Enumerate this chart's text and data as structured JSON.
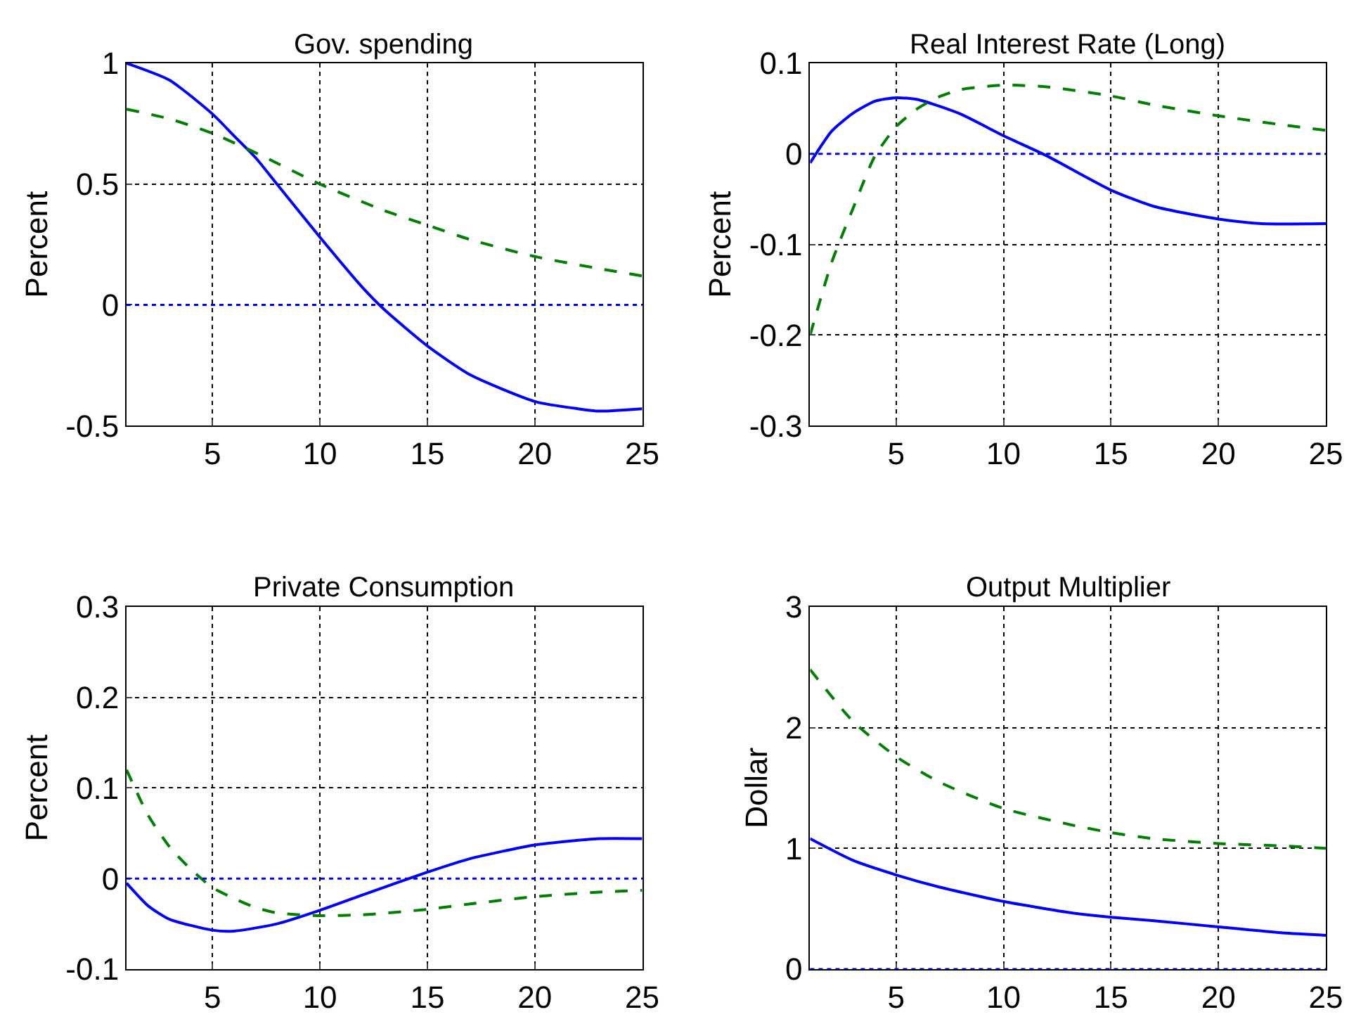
{
  "chart_data": [
    {
      "type": "line",
      "title": "Gov. spending",
      "ylabel": "Percent",
      "xlim": [
        1,
        25
      ],
      "xticks": [
        5,
        10,
        15,
        20,
        25
      ],
      "ylim": [
        -0.5,
        1
      ],
      "yticks": [
        -0.5,
        0,
        0.5,
        1
      ],
      "grid": true,
      "ref_lines": [
        {
          "axis": "y",
          "value": 0,
          "color": "#0000ff",
          "line_style": "dotted"
        }
      ],
      "series": [
        {
          "color": "#0000ff",
          "line_style": "solid",
          "x": [
            1,
            3,
            5,
            6,
            7,
            8,
            10,
            12,
            13,
            15,
            17,
            20,
            22,
            23,
            25
          ],
          "values": [
            1.0,
            0.93,
            0.79,
            0.7,
            0.61,
            0.5,
            0.28,
            0.07,
            -0.02,
            -0.17,
            -0.29,
            -0.4,
            -0.43,
            -0.44,
            -0.43
          ]
        },
        {
          "color": "#008000",
          "line_style": "dashed",
          "x": [
            1,
            3,
            5,
            7,
            10,
            13,
            15,
            17,
            20,
            23,
            25
          ],
          "values": [
            0.81,
            0.77,
            0.71,
            0.63,
            0.5,
            0.39,
            0.33,
            0.27,
            0.2,
            0.15,
            0.12
          ]
        }
      ]
    },
    {
      "type": "line",
      "title": "Real Interest Rate (Long)",
      "ylabel": "Percent",
      "xlim": [
        1,
        25
      ],
      "xticks": [
        5,
        10,
        15,
        20,
        25
      ],
      "ylim": [
        -0.3,
        0.1
      ],
      "yticks": [
        -0.3,
        -0.2,
        -0.1,
        0,
        0.1
      ],
      "grid": true,
      "ref_lines": [
        {
          "axis": "y",
          "value": 0,
          "color": "#0000ff",
          "line_style": "dotted"
        }
      ],
      "series": [
        {
          "color": "#0000ff",
          "line_style": "solid",
          "x": [
            1,
            2,
            3,
            4,
            5,
            6,
            8,
            10,
            12,
            15,
            17,
            20,
            22,
            25
          ],
          "values": [
            -0.01,
            0.025,
            0.045,
            0.058,
            0.062,
            0.06,
            0.044,
            0.02,
            -0.002,
            -0.04,
            -0.058,
            -0.072,
            -0.077,
            -0.077
          ]
        },
        {
          "color": "#008000",
          "line_style": "dashed",
          "x": [
            1,
            2,
            3,
            4,
            5,
            6,
            7,
            8,
            10,
            12,
            15,
            17,
            20,
            23,
            25
          ],
          "values": [
            -0.2,
            -0.12,
            -0.06,
            -0.003,
            0.03,
            0.05,
            0.063,
            0.071,
            0.076,
            0.074,
            0.064,
            0.054,
            0.042,
            0.032,
            0.026
          ]
        }
      ]
    },
    {
      "type": "line",
      "title": "Private Consumption",
      "ylabel": "Percent",
      "xlim": [
        1,
        25
      ],
      "xticks": [
        5,
        10,
        15,
        20,
        25
      ],
      "ylim": [
        -0.1,
        0.3
      ],
      "yticks": [
        -0.1,
        0,
        0.1,
        0.2,
        0.3
      ],
      "grid": true,
      "ref_lines": [
        {
          "axis": "y",
          "value": 0,
          "color": "#0000ff",
          "line_style": "dotted"
        }
      ],
      "series": [
        {
          "color": "#0000ff",
          "line_style": "solid",
          "x": [
            1,
            2,
            3,
            5,
            6,
            8,
            10,
            12,
            15,
            17,
            20,
            23,
            25
          ],
          "values": [
            -0.005,
            -0.03,
            -0.045,
            -0.057,
            -0.058,
            -0.05,
            -0.035,
            -0.018,
            0.007,
            0.022,
            0.037,
            0.044,
            0.044
          ]
        },
        {
          "color": "#008000",
          "line_style": "dashed",
          "x": [
            1,
            2,
            3,
            4,
            5,
            6,
            7,
            8,
            10,
            12,
            15,
            17,
            20,
            23,
            25
          ],
          "values": [
            0.12,
            0.07,
            0.035,
            0.01,
            -0.01,
            -0.022,
            -0.032,
            -0.038,
            -0.041,
            -0.04,
            -0.034,
            -0.028,
            -0.02,
            -0.015,
            -0.013
          ]
        }
      ]
    },
    {
      "type": "line",
      "title": "Output Multiplier",
      "ylabel": "Dollar",
      "xlim": [
        1,
        25
      ],
      "xticks": [
        5,
        10,
        15,
        20,
        25
      ],
      "ylim": [
        0,
        3
      ],
      "yticks": [
        0,
        1,
        2,
        3
      ],
      "grid": true,
      "ref_lines": [
        {
          "axis": "y",
          "value": 0,
          "color": "#0000ff",
          "line_style": "dotted"
        }
      ],
      "series": [
        {
          "color": "#0000ff",
          "line_style": "solid",
          "x": [
            1,
            3,
            5,
            7,
            10,
            13,
            15,
            17,
            20,
            23,
            25
          ],
          "values": [
            1.08,
            0.9,
            0.78,
            0.68,
            0.56,
            0.47,
            0.43,
            0.4,
            0.35,
            0.3,
            0.28
          ]
        },
        {
          "color": "#008000",
          "line_style": "dashed",
          "x": [
            1,
            3,
            5,
            7,
            10,
            13,
            15,
            17,
            20,
            23,
            25
          ],
          "values": [
            2.48,
            2.05,
            1.76,
            1.55,
            1.33,
            1.2,
            1.13,
            1.08,
            1.04,
            1.02,
            1.0
          ]
        }
      ]
    }
  ]
}
